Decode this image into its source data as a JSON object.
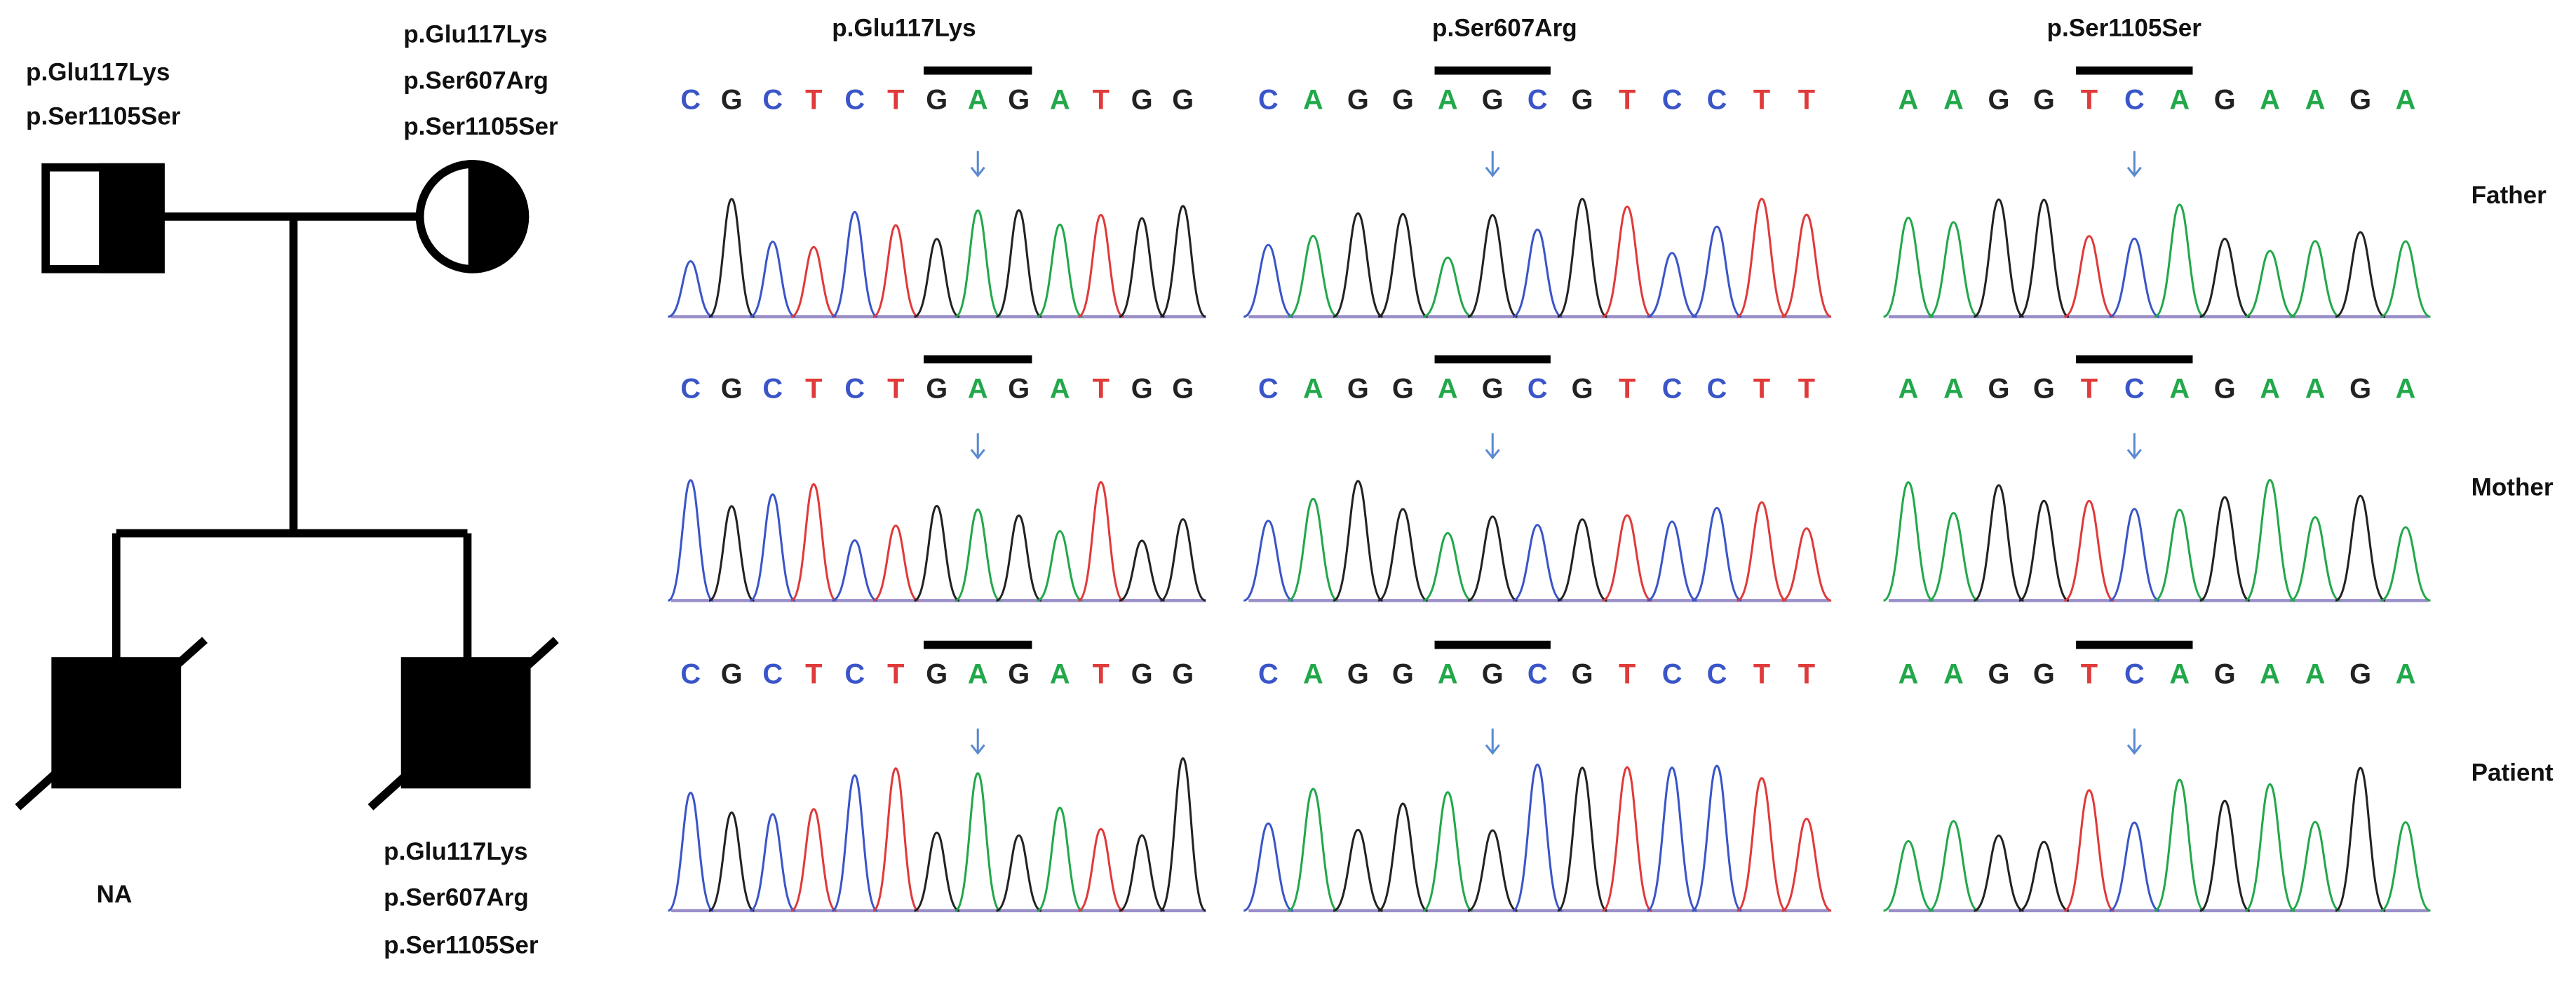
{
  "pedigree": {
    "father": {
      "variants": [
        "p.Glu117Lys",
        "p.Ser1105Ser"
      ]
    },
    "mother": {
      "variants": [
        "p.Glu117Lys",
        "p.Ser607Arg",
        "p.Ser1105Ser"
      ]
    },
    "sibling": {
      "label": "NA"
    },
    "patient": {
      "variants": [
        "p.Glu117Lys",
        "p.Ser607Arg",
        "p.Ser1105Ser"
      ]
    }
  },
  "columns": [
    {
      "title": "p.Glu117Lys"
    },
    {
      "title": "p.Ser607Arg"
    },
    {
      "title": "p.Ser1105Ser"
    }
  ],
  "rows": [
    {
      "label": "Father",
      "sequences": [
        [
          "C",
          "G",
          "C",
          "T",
          "C",
          "T",
          "G",
          "A",
          "G",
          "A",
          "T",
          "G",
          "G"
        ],
        [
          "C",
          "A",
          "G",
          "G",
          "A",
          "G",
          "C",
          "G",
          "T",
          "C",
          "C",
          "T",
          "T"
        ],
        [
          "A",
          "A",
          "G",
          "G",
          "T",
          "C",
          "A",
          "G",
          "A",
          "A",
          "G",
          "A"
        ]
      ]
    },
    {
      "label": "Mother",
      "sequences": [
        [
          "C",
          "G",
          "C",
          "T",
          "C",
          "T",
          "G",
          "A",
          "G",
          "A",
          "T",
          "G",
          "G"
        ],
        [
          "C",
          "A",
          "G",
          "G",
          "A",
          "G",
          "C",
          "G",
          "T",
          "C",
          "C",
          "T",
          "T"
        ],
        [
          "A",
          "A",
          "G",
          "G",
          "T",
          "C",
          "A",
          "G",
          "A",
          "A",
          "G",
          "A"
        ]
      ]
    },
    {
      "label": "Patient",
      "sequences": [
        [
          "C",
          "G",
          "C",
          "T",
          "C",
          "T",
          "G",
          "A",
          "G",
          "A",
          "T",
          "G",
          "G"
        ],
        [
          "C",
          "A",
          "G",
          "G",
          "A",
          "G",
          "C",
          "G",
          "T",
          "C",
          "C",
          "T",
          "T"
        ],
        [
          "A",
          "A",
          "G",
          "G",
          "T",
          "C",
          "A",
          "G",
          "A",
          "A",
          "G",
          "A"
        ]
      ]
    }
  ]
}
